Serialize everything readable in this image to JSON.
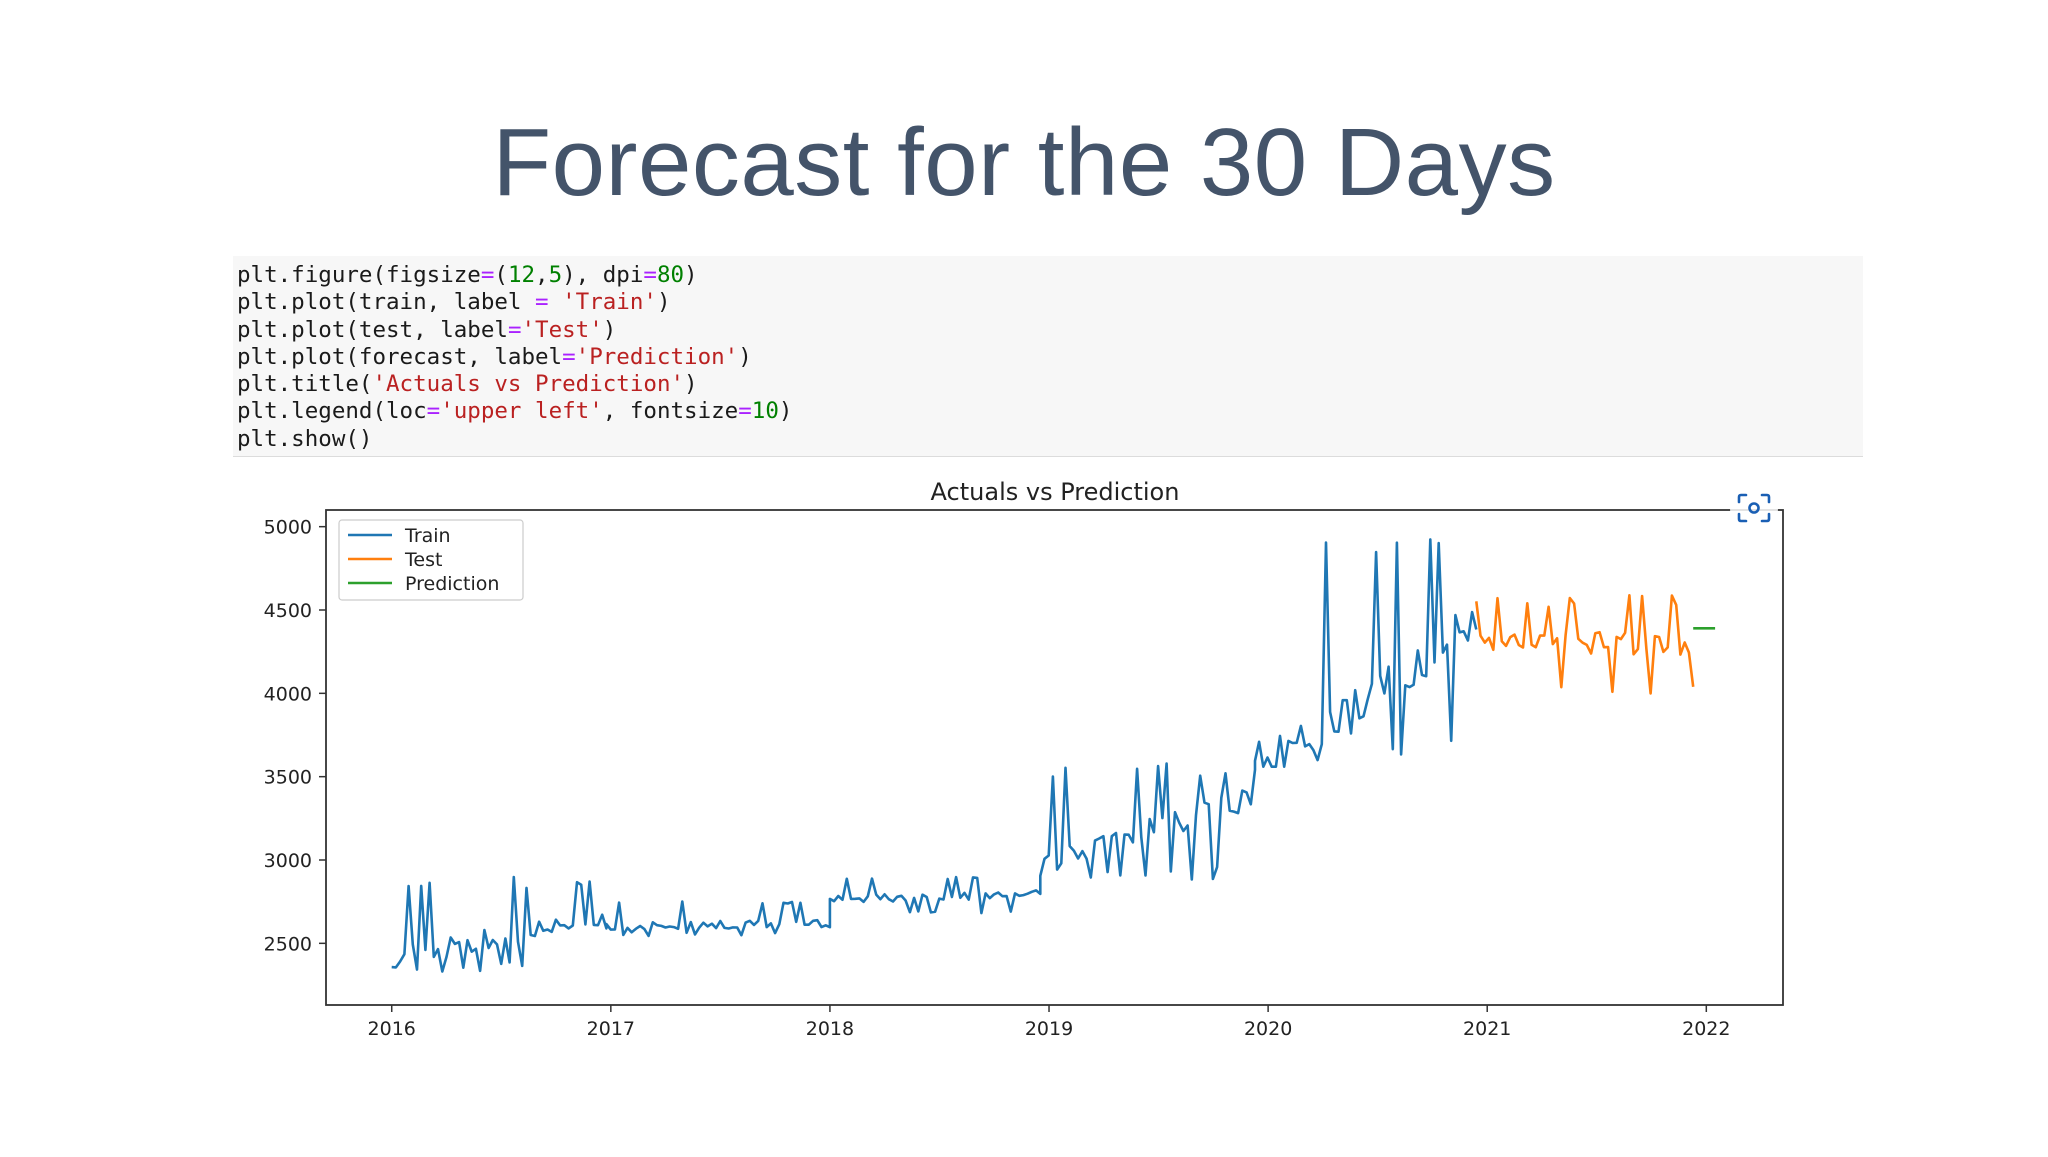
{
  "slide": {
    "title": "Forecast for the 30 Days"
  },
  "code": {
    "lines": [
      [
        {
          "t": "plt.figure(figsize"
        },
        {
          "t": "=",
          "c": "op"
        },
        {
          "t": "("
        },
        {
          "t": "12",
          "c": "num"
        },
        {
          "t": ","
        },
        {
          "t": "5",
          "c": "num"
        },
        {
          "t": "), dpi"
        },
        {
          "t": "=",
          "c": "op"
        },
        {
          "t": "80",
          "c": "num"
        },
        {
          "t": ")"
        }
      ],
      [
        {
          "t": "plt.plot(train, label "
        },
        {
          "t": "=",
          "c": "op"
        },
        {
          "t": " "
        },
        {
          "t": "'Train'",
          "c": "str"
        },
        {
          "t": ")"
        }
      ],
      [
        {
          "t": "plt.plot(test, label"
        },
        {
          "t": "=",
          "c": "op"
        },
        {
          "t": "'Test'",
          "c": "str"
        },
        {
          "t": ")"
        }
      ],
      [
        {
          "t": "plt.plot(forecast, label"
        },
        {
          "t": "=",
          "c": "op"
        },
        {
          "t": "'Prediction'",
          "c": "str"
        },
        {
          "t": ")"
        }
      ],
      [
        {
          "t": "plt.title("
        },
        {
          "t": "'Actuals vs Prediction'",
          "c": "str"
        },
        {
          "t": ")"
        }
      ],
      [
        {
          "t": "plt.legend(loc"
        },
        {
          "t": "=",
          "c": "op"
        },
        {
          "t": "'upper left'",
          "c": "str"
        },
        {
          "t": ", fontsize"
        },
        {
          "t": "=",
          "c": "op"
        },
        {
          "t": "10",
          "c": "num"
        },
        {
          "t": ")"
        }
      ],
      [
        {
          "t": "plt.show()"
        }
      ]
    ]
  },
  "chart_data": {
    "type": "line",
    "title": "Actuals vs Prediction",
    "xlabel": "",
    "ylabel": "",
    "xlim": [
      2015.7,
      2022.35
    ],
    "ylim": [
      2130,
      5100
    ],
    "x_ticks": [
      "2016",
      "2017",
      "2018",
      "2019",
      "2020",
      "2021",
      "2022"
    ],
    "y_ticks": [
      2500,
      3000,
      3500,
      4000,
      4500,
      5000
    ],
    "legend_position": "upper-left",
    "grid": false,
    "series": [
      {
        "name": "Train",
        "color": "#1f77b4",
        "segments": [
          {
            "start": 2016.0,
            "end": 2016.98,
            "base_start": 2420,
            "base_end": 2650,
            "peak": 2900,
            "trough": 2330
          },
          {
            "start": 2016.98,
            "end": 2018.0,
            "base_start": 2600,
            "base_end": 2620,
            "peak": 2760,
            "trough": 2540
          },
          {
            "start": 2018.0,
            "end": 2018.96,
            "base_start": 2760,
            "base_end": 2800,
            "peak": 2900,
            "trough": 2680
          },
          {
            "start": 2018.96,
            "end": 2019.94,
            "base_start": 2960,
            "base_end": 3380,
            "peak": 3580,
            "trough": 2880
          },
          {
            "start": 2019.94,
            "end": 2020.95,
            "base_start": 3480,
            "base_end": 4450,
            "peak": 4970,
            "trough": 3560
          }
        ]
      },
      {
        "name": "Test",
        "color": "#ff7f0e",
        "segments": [
          {
            "start": 2020.95,
            "end": 2021.94,
            "base_start": 4300,
            "base_end": 4300,
            "peak": 4590,
            "trough": 3970
          }
        ]
      },
      {
        "name": "Prediction",
        "color": "#2ca02c",
        "x": [
          2021.94,
          2022.04
        ],
        "y": [
          4390,
          4390
        ]
      }
    ]
  }
}
